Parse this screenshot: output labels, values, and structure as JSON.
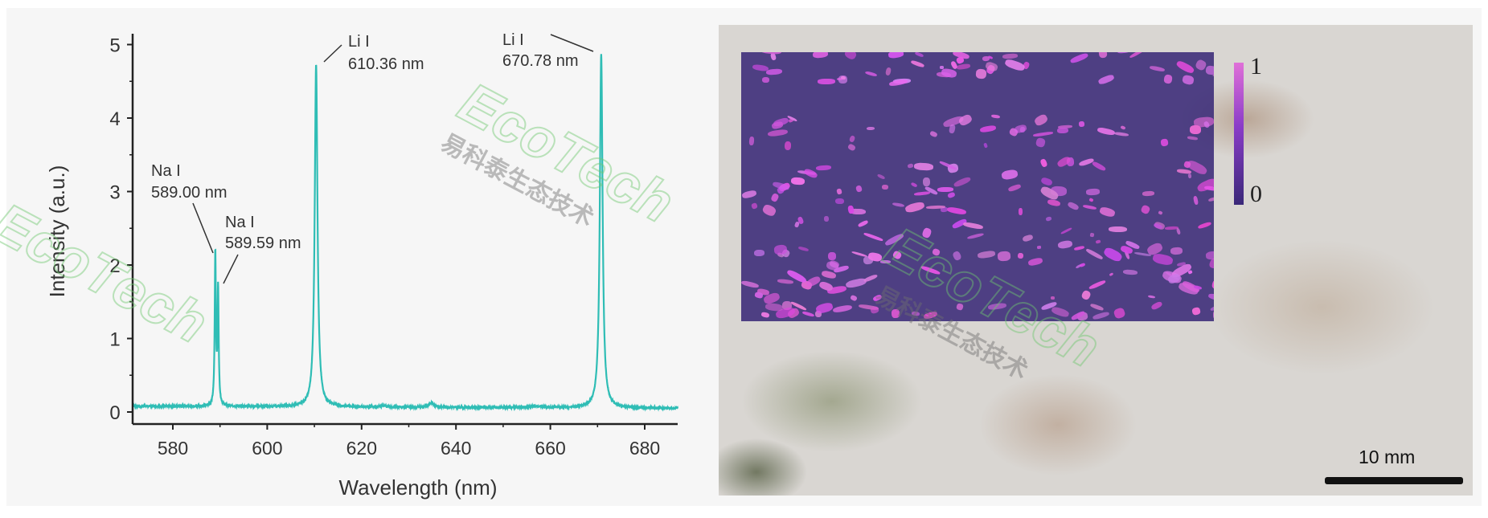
{
  "chart_data": {
    "type": "line",
    "xlabel": "Wavelength (nm)",
    "ylabel": "Intensity (a.u.)",
    "xlim": [
      571.5,
      687
    ],
    "ylim": [
      -0.2,
      5.2
    ],
    "xticks": [
      580,
      600,
      620,
      640,
      660,
      680
    ],
    "yticks": [
      0,
      1,
      2,
      3,
      4,
      5
    ],
    "grid": false,
    "line_color": "#2fbdb5",
    "baseline": 0.08,
    "peaks": [
      {
        "wavelength": 589.0,
        "intensity": 2.15,
        "width": 0.15
      },
      {
        "wavelength": 589.59,
        "intensity": 1.65,
        "width": 0.15
      },
      {
        "wavelength": 610.36,
        "intensity": 4.75,
        "width": 0.35
      },
      {
        "wavelength": 624.5,
        "intensity": 0.1,
        "width": 0.5
      },
      {
        "wavelength": 634.8,
        "intensity": 0.14,
        "width": 0.6
      },
      {
        "wavelength": 656.8,
        "intensity": 0.1,
        "width": 1.5
      },
      {
        "wavelength": 670.78,
        "intensity": 4.9,
        "width": 0.35
      }
    ],
    "annotations": [
      {
        "line1": "Na I",
        "line2": "589.00 nm"
      },
      {
        "line1": "Na I",
        "line2": "589.59 nm"
      },
      {
        "line1": "Li I",
        "line2": "610.36 nm"
      },
      {
        "line1": "Li I",
        "line2": "670.78 nm"
      }
    ]
  },
  "map": {
    "colorbar_max": "1",
    "colorbar_min": "0",
    "colorbar_colors": [
      "#e070d8",
      "#3a2878"
    ],
    "scale_bar": "10 mm"
  },
  "watermark": {
    "brand": "EcoTech®",
    "cn": "易科泰生态技术"
  }
}
